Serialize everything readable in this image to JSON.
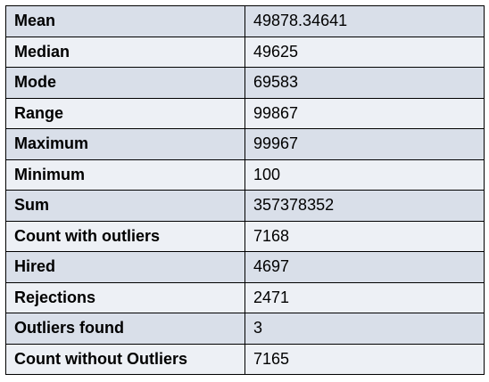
{
  "rows": [
    {
      "label": "Mean",
      "value": "49878.34641"
    },
    {
      "label": "Median",
      "value": "49625"
    },
    {
      "label": "Mode",
      "value": "69583"
    },
    {
      "label": "Range",
      "value": "99867"
    },
    {
      "label": "Maximum",
      "value": "99967"
    },
    {
      "label": "Minimum",
      "value": "100"
    },
    {
      "label": "Sum",
      "value": "357378352"
    },
    {
      "label": "Count with outliers",
      "value": "7168"
    },
    {
      "label": "Hired",
      "value": "4697"
    },
    {
      "label": "Rejections",
      "value": "2471"
    },
    {
      "label": "Outliers found",
      "value": "3"
    },
    {
      "label": "Count without Outliers",
      "value": "7165"
    }
  ],
  "colors": {
    "row_dark": "#d9dfe9",
    "row_light": "#edf0f5",
    "border": "#000000"
  }
}
